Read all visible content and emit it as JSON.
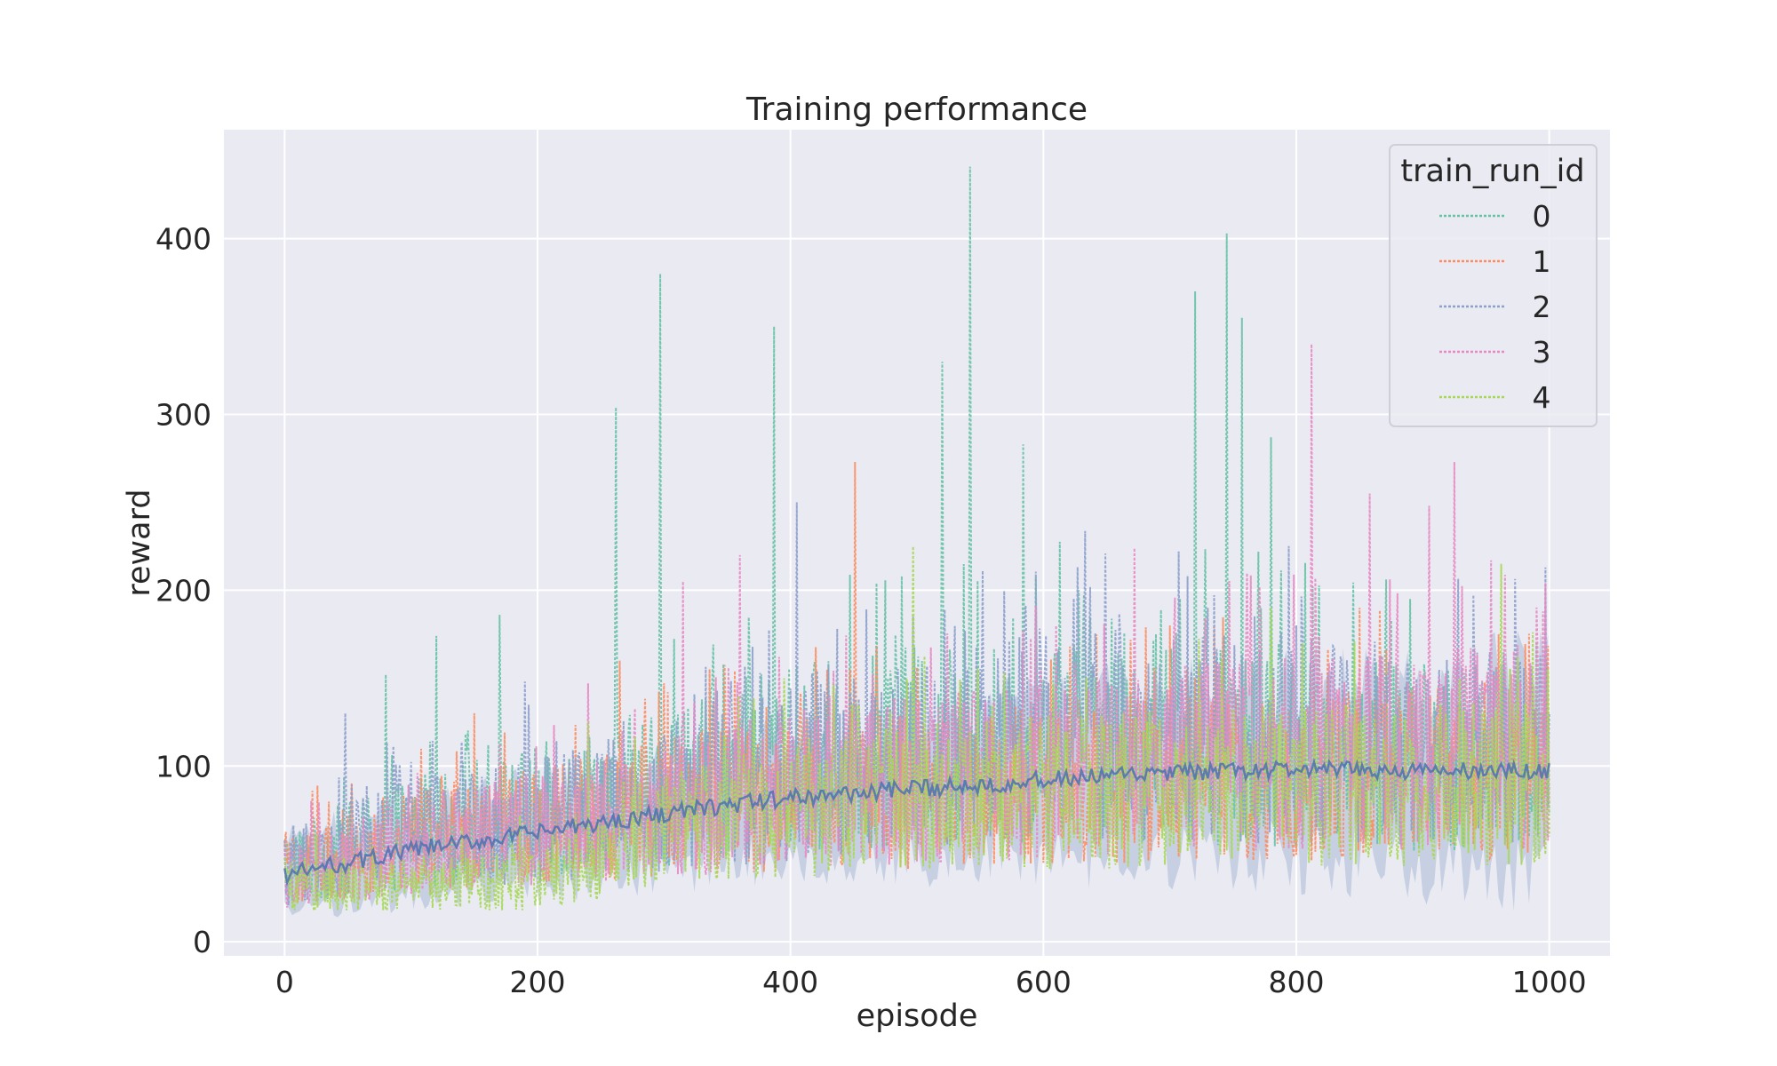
{
  "chart_data": {
    "type": "line",
    "title": "Training performance",
    "xlabel": "episode",
    "ylabel": "reward",
    "xlim": [
      -48,
      1048
    ],
    "ylim": [
      -8,
      462
    ],
    "xticks": [
      0,
      200,
      400,
      600,
      800,
      1000
    ],
    "xtick_labels": [
      "0",
      "200",
      "400",
      "600",
      "800",
      "1000"
    ],
    "yticks": [
      0,
      100,
      200,
      300,
      400
    ],
    "ytick_labels": [
      "0",
      "100",
      "200",
      "300",
      "400"
    ],
    "grid": true,
    "legend_title": "train_run_id",
    "legend_position": "top-right",
    "plot_background": "#eaeaf2",
    "grid_color": "#ffffff",
    "mean_line_color": "#4c72b0",
    "ci_band_color": "#a9bad6",
    "series": [
      {
        "name": "0",
        "color": "#66c2a5",
        "baseline": [
          [
            0,
            40
          ],
          [
            100,
            60
          ],
          [
            200,
            70
          ],
          [
            300,
            85
          ],
          [
            400,
            100
          ],
          [
            500,
            105
          ],
          [
            600,
            110
          ],
          [
            700,
            110
          ],
          [
            800,
            105
          ],
          [
            900,
            100
          ],
          [
            1000,
            100
          ]
        ],
        "peaks": [
          [
            80,
            152
          ],
          [
            120,
            174
          ],
          [
            170,
            186
          ],
          [
            262,
            304
          ],
          [
            297,
            380
          ],
          [
            387,
            350
          ],
          [
            520,
            330
          ],
          [
            542,
            441
          ],
          [
            584,
            283
          ],
          [
            720,
            370
          ],
          [
            745,
            403
          ],
          [
            757,
            355
          ],
          [
            780,
            287
          ],
          [
            890,
            195
          ],
          [
            990,
            170
          ]
        ]
      },
      {
        "name": "1",
        "color": "#fc8d62",
        "baseline": [
          [
            0,
            40
          ],
          [
            100,
            55
          ],
          [
            200,
            62
          ],
          [
            300,
            72
          ],
          [
            400,
            80
          ],
          [
            500,
            82
          ],
          [
            600,
            85
          ],
          [
            700,
            88
          ],
          [
            800,
            90
          ],
          [
            900,
            92
          ],
          [
            1000,
            92
          ]
        ],
        "peaks": [
          [
            150,
            130
          ],
          [
            265,
            160
          ],
          [
            451,
            273
          ],
          [
            700,
            180
          ],
          [
            850,
            190
          ],
          [
            960,
            175
          ]
        ]
      },
      {
        "name": "2",
        "color": "#8da0cb",
        "baseline": [
          [
            0,
            40
          ],
          [
            100,
            58
          ],
          [
            200,
            65
          ],
          [
            300,
            78
          ],
          [
            400,
            90
          ],
          [
            500,
            100
          ],
          [
            600,
            112
          ],
          [
            700,
            112
          ],
          [
            800,
            110
          ],
          [
            900,
            105
          ],
          [
            1000,
            102
          ]
        ],
        "peaks": [
          [
            48,
            130
          ],
          [
            190,
            148
          ],
          [
            405,
            250
          ],
          [
            730,
            190
          ],
          [
            800,
            180
          ]
        ]
      },
      {
        "name": "3",
        "color": "#e78ac3",
        "baseline": [
          [
            0,
            35
          ],
          [
            100,
            52
          ],
          [
            200,
            60
          ],
          [
            300,
            72
          ],
          [
            400,
            82
          ],
          [
            500,
            88
          ],
          [
            600,
            92
          ],
          [
            700,
            98
          ],
          [
            800,
            102
          ],
          [
            900,
            104
          ],
          [
            1000,
            106
          ]
        ],
        "peaks": [
          [
            240,
            147
          ],
          [
            315,
            205
          ],
          [
            360,
            220
          ],
          [
            672,
            224
          ],
          [
            812,
            340
          ],
          [
            858,
            255
          ],
          [
            905,
            248
          ],
          [
            925,
            273
          ],
          [
            995,
            188
          ]
        ]
      },
      {
        "name": "4",
        "color": "#a6d854",
        "baseline": [
          [
            0,
            30
          ],
          [
            100,
            30
          ],
          [
            200,
            35
          ],
          [
            250,
            48
          ],
          [
            300,
            62
          ],
          [
            400,
            72
          ],
          [
            500,
            78
          ],
          [
            600,
            80
          ],
          [
            700,
            82
          ],
          [
            800,
            84
          ],
          [
            900,
            85
          ],
          [
            1000,
            85
          ]
        ],
        "peaks": [
          [
            240,
            125
          ],
          [
            497,
            225
          ],
          [
            780,
            190
          ],
          [
            962,
            215
          ]
        ]
      }
    ],
    "mean": [
      [
        0,
        38
      ],
      [
        100,
        52
      ],
      [
        200,
        62
      ],
      [
        300,
        73
      ],
      [
        400,
        82
      ],
      [
        500,
        87
      ],
      [
        600,
        92
      ],
      [
        700,
        96
      ],
      [
        800,
        98
      ],
      [
        900,
        97
      ],
      [
        1000,
        97
      ]
    ]
  }
}
